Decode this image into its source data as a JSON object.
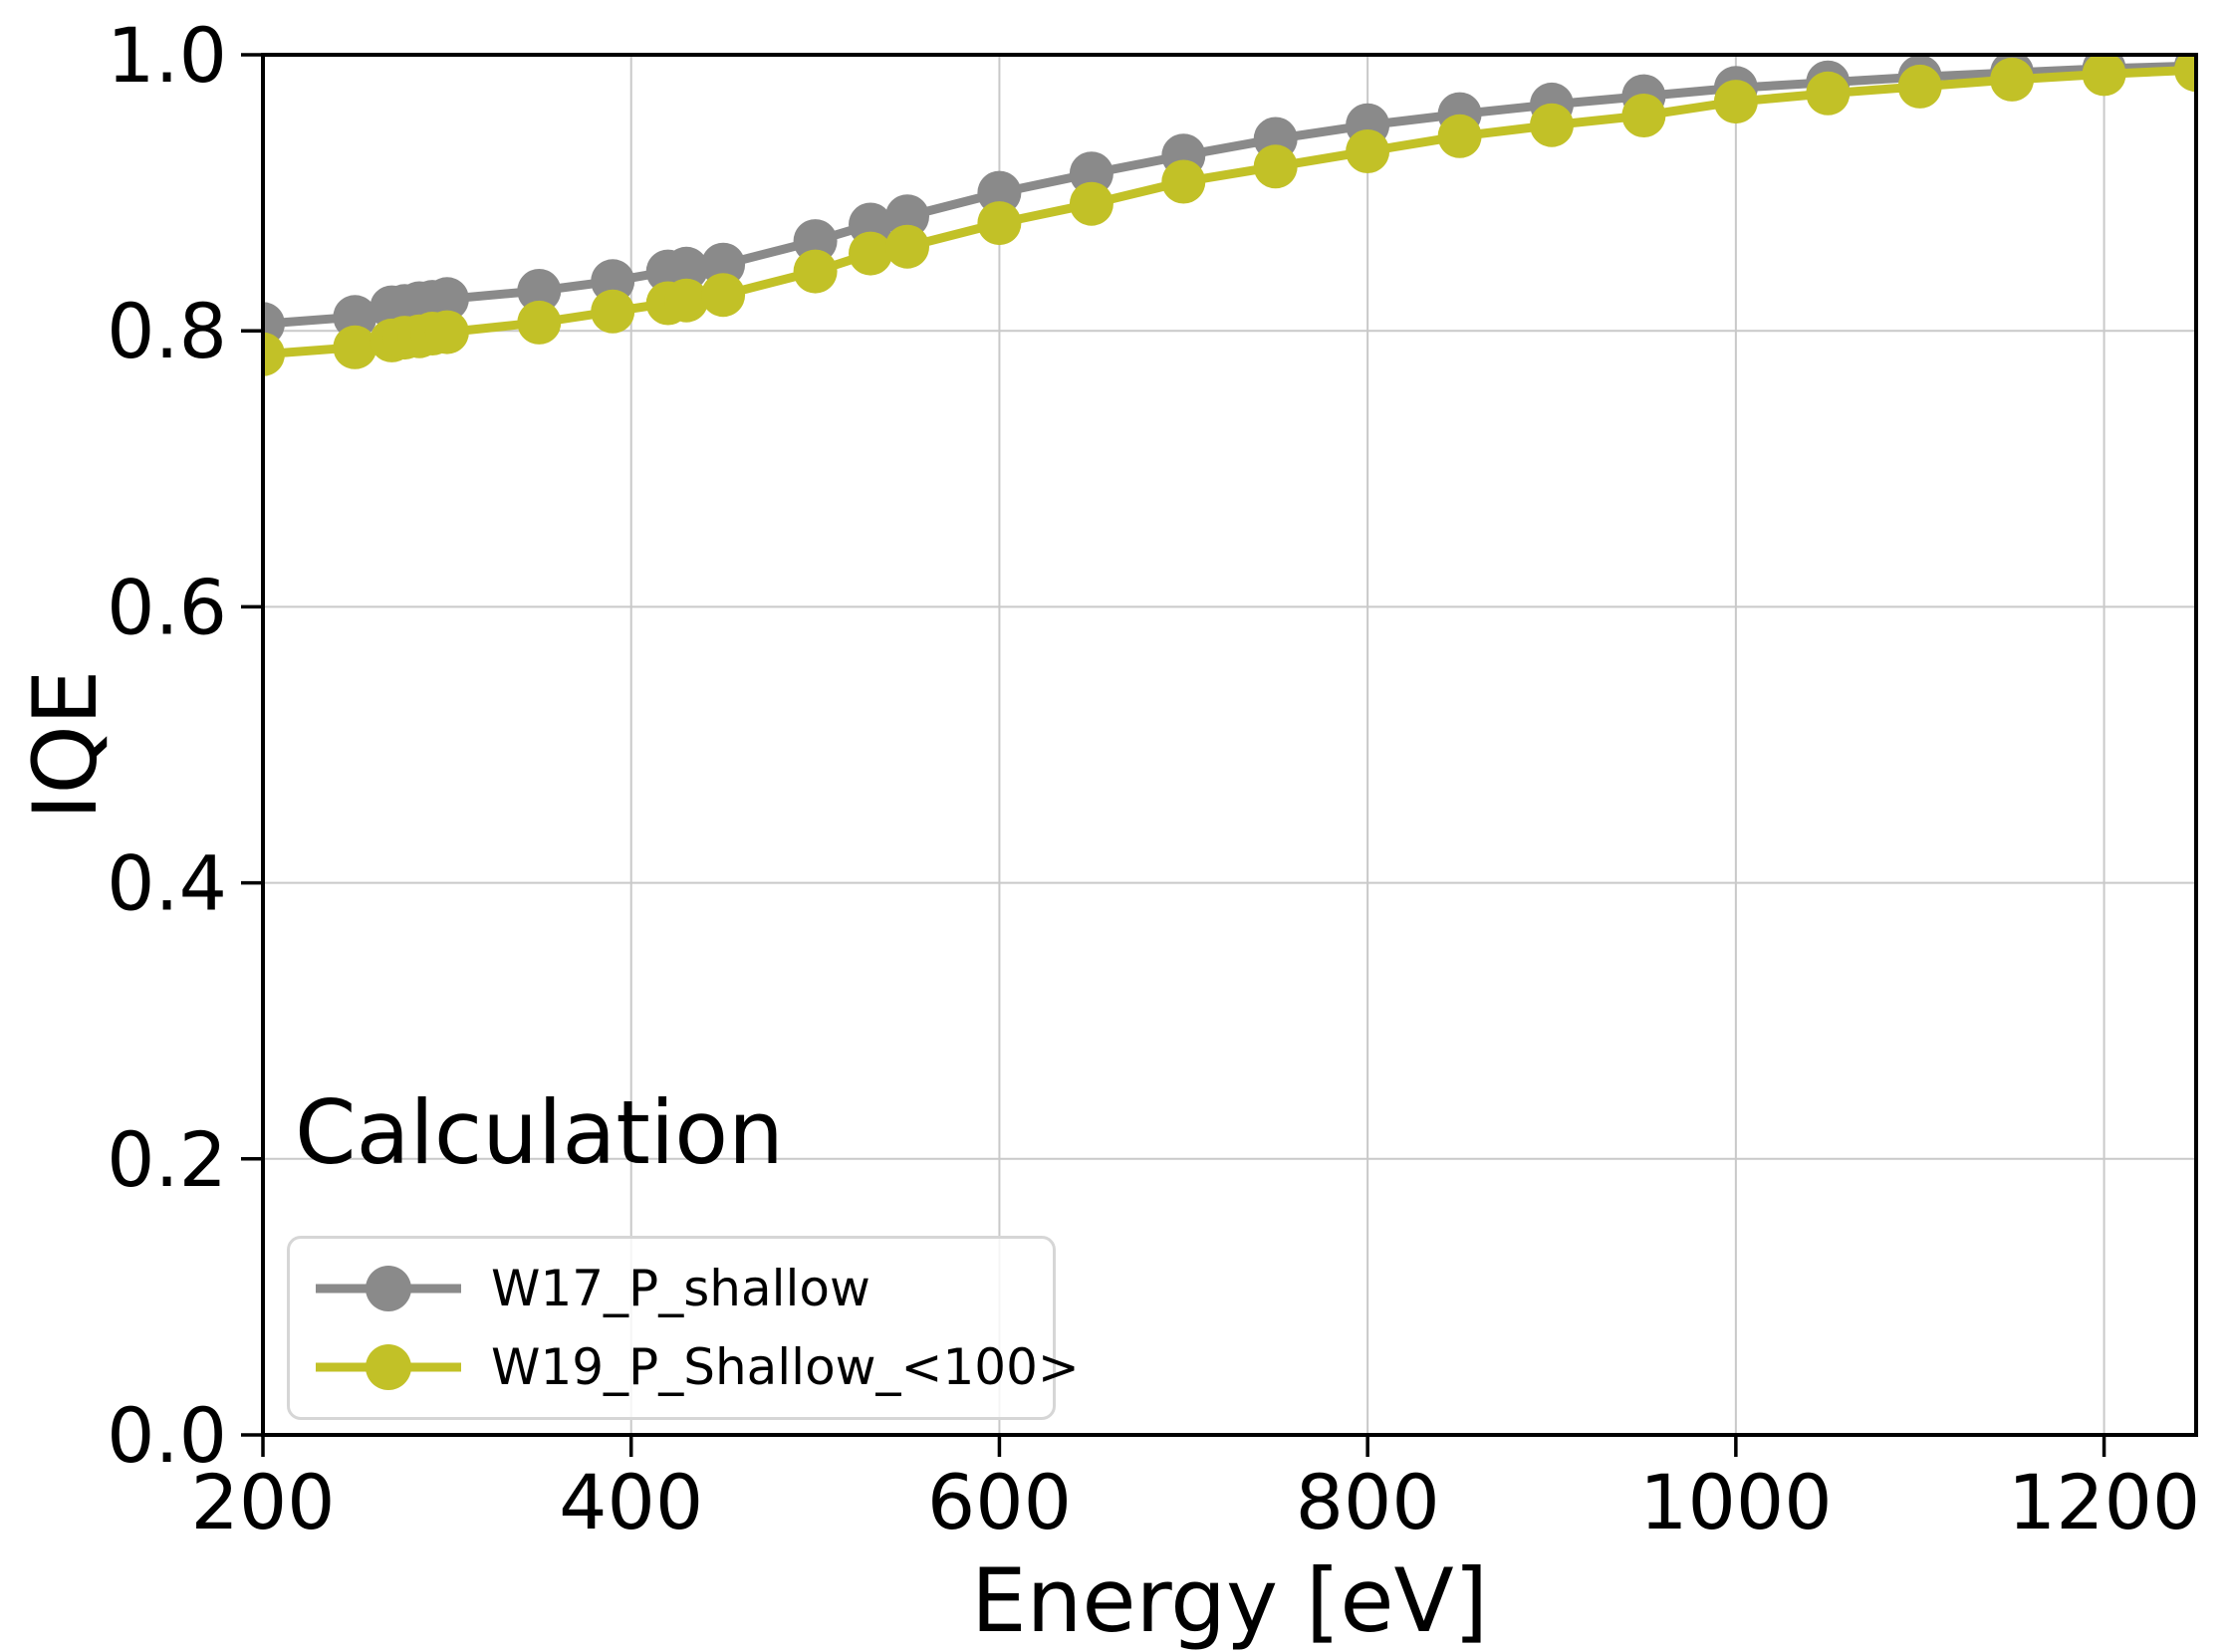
{
  "figure": {
    "background": "#ffffff",
    "spine_color": "#000000",
    "tick_label_color": "#000000"
  },
  "chart_data": {
    "type": "line",
    "title": "",
    "annotation": "Calculation",
    "xlabel": "Energy [eV]",
    "ylabel": "IQE",
    "xlim": [
      200,
      1250
    ],
    "ylim": [
      0.0,
      1.0
    ],
    "xticks": [
      200,
      400,
      600,
      800,
      1000,
      1200
    ],
    "xtick_labels": [
      "200",
      "400",
      "600",
      "800",
      "1000",
      "1200"
    ],
    "yticks": [
      0.0,
      0.2,
      0.4,
      0.6,
      0.8,
      1.0
    ],
    "ytick_labels": [
      "0.0",
      "0.2",
      "0.4",
      "0.6",
      "0.8",
      "1.0"
    ],
    "grid": true,
    "grid_color": "#c9c9c9",
    "legend_position": "lower-left",
    "x": [
      200,
      250,
      270,
      277,
      285,
      292,
      300,
      350,
      390,
      420,
      430,
      450,
      500,
      530,
      550,
      600,
      650,
      700,
      750,
      800,
      850,
      900,
      950,
      1000,
      1050,
      1100,
      1150,
      1200,
      1250
    ],
    "series": [
      {
        "name": "W17_P_shallow",
        "color": "#8a8a8a",
        "marker": "circle",
        "values": [
          0.805,
          0.81,
          0.817,
          0.818,
          0.82,
          0.821,
          0.823,
          0.829,
          0.836,
          0.843,
          0.845,
          0.848,
          0.865,
          0.877,
          0.883,
          0.9,
          0.914,
          0.927,
          0.939,
          0.949,
          0.957,
          0.964,
          0.97,
          0.976,
          0.98,
          0.984,
          0.987,
          0.99,
          0.992
        ]
      },
      {
        "name": "W19_P_Shallow_<100>",
        "color": "#c2c127",
        "marker": "circle",
        "values": [
          0.783,
          0.788,
          0.793,
          0.795,
          0.796,
          0.798,
          0.799,
          0.806,
          0.814,
          0.82,
          0.822,
          0.826,
          0.843,
          0.856,
          0.861,
          0.878,
          0.892,
          0.908,
          0.919,
          0.93,
          0.941,
          0.949,
          0.956,
          0.966,
          0.972,
          0.977,
          0.982,
          0.986,
          0.989
        ]
      }
    ]
  }
}
